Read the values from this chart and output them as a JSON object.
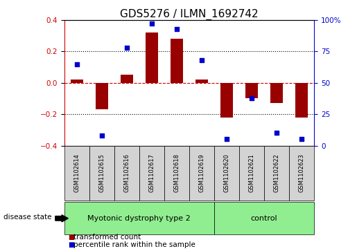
{
  "title": "GDS5276 / ILMN_1692742",
  "samples": [
    "GSM1102614",
    "GSM1102615",
    "GSM1102616",
    "GSM1102617",
    "GSM1102618",
    "GSM1102619",
    "GSM1102620",
    "GSM1102621",
    "GSM1102622",
    "GSM1102623"
  ],
  "red_bars": [
    0.02,
    -0.17,
    0.05,
    0.32,
    0.28,
    0.02,
    -0.22,
    -0.1,
    -0.13,
    -0.22
  ],
  "blue_dots_pct": [
    65,
    8,
    78,
    97,
    93,
    68,
    5,
    38,
    10,
    5
  ],
  "ylim_left": [
    -0.4,
    0.4
  ],
  "ylim_right": [
    0,
    100
  ],
  "yticks_left": [
    -0.4,
    -0.2,
    0.0,
    0.2,
    0.4
  ],
  "yticks_right": [
    0,
    25,
    50,
    75,
    100
  ],
  "ytick_labels_right": [
    "0",
    "25",
    "50",
    "75",
    "100%"
  ],
  "bar_color": "#990000",
  "dot_color": "#0000cc",
  "zero_line_color": "#cc0000",
  "grid_color": "#000000",
  "group1_label": "Myotonic dystrophy type 2",
  "group2_label": "control",
  "group1_count": 6,
  "group2_count": 4,
  "disease_state_label": "disease state",
  "legend1_label": "transformed count",
  "legend2_label": "percentile rank within the sample",
  "cell_bg": "#d3d3d3",
  "group_bg": "#90ee90",
  "plot_bg": "#ffffff",
  "title_fontsize": 11,
  "tick_fontsize": 7.5,
  "sample_fontsize": 6,
  "group_fontsize": 8,
  "legend_fontsize": 7.5
}
